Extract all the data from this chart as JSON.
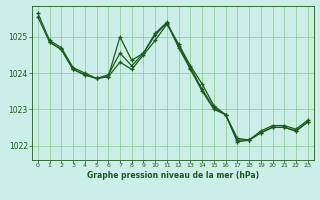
{
  "bg_color": "#cceee8",
  "grid_color": "#88cc88",
  "line_color": "#1a5c1a",
  "title": "Graphe pression niveau de la mer (hPa)",
  "ylim": [
    1021.6,
    1025.85
  ],
  "xlim": [
    -0.5,
    23.5
  ],
  "yticks": [
    1022,
    1023,
    1024,
    1025
  ],
  "xticks": [
    0,
    1,
    2,
    3,
    4,
    5,
    6,
    7,
    8,
    9,
    10,
    11,
    12,
    13,
    14,
    15,
    16,
    17,
    18,
    19,
    20,
    21,
    22,
    23
  ],
  "line1_x": [
    0,
    1,
    2,
    3,
    4,
    5,
    6,
    7,
    8,
    9,
    10,
    11,
    12,
    13,
    14,
    15,
    16,
    17,
    18,
    19,
    20,
    21,
    22,
    23
  ],
  "line1_y": [
    1025.65,
    1024.9,
    1024.7,
    1024.15,
    1024.0,
    1023.85,
    1023.95,
    1024.55,
    1024.2,
    1024.55,
    1025.1,
    1025.4,
    1024.75,
    1024.15,
    1023.55,
    1023.05,
    1022.85,
    1022.1,
    1022.15,
    1022.35,
    1022.5,
    1022.5,
    1022.4,
    1022.65
  ],
  "line2_x": [
    0,
    1,
    2,
    3,
    4,
    5,
    6,
    7,
    8,
    9,
    10,
    11,
    12,
    13,
    14,
    15,
    16,
    17,
    18,
    19,
    20,
    21,
    22,
    23
  ],
  "line2_y": [
    1025.55,
    1024.85,
    1024.65,
    1024.1,
    1023.95,
    1023.85,
    1023.9,
    1025.0,
    1024.35,
    1024.55,
    1025.05,
    1025.38,
    1024.7,
    1024.1,
    1023.5,
    1023.0,
    1022.85,
    1022.2,
    1022.15,
    1022.4,
    1022.55,
    1022.55,
    1022.45,
    1022.7
  ],
  "line3_x": [
    1,
    2,
    3,
    4,
    5,
    6,
    7,
    8,
    9,
    10,
    11,
    12,
    13,
    14,
    15,
    16,
    17,
    18,
    19,
    20,
    21,
    22,
    23
  ],
  "line3_y": [
    1024.85,
    1024.65,
    1024.1,
    1023.95,
    1023.85,
    1023.9,
    1024.3,
    1024.1,
    1024.5,
    1024.9,
    1025.35,
    1024.8,
    1024.2,
    1023.7,
    1023.1,
    1022.85,
    1022.15,
    1022.15,
    1022.35,
    1022.5,
    1022.5,
    1022.4,
    1022.65
  ],
  "figsize": [
    3.2,
    2.0
  ],
  "dpi": 100
}
